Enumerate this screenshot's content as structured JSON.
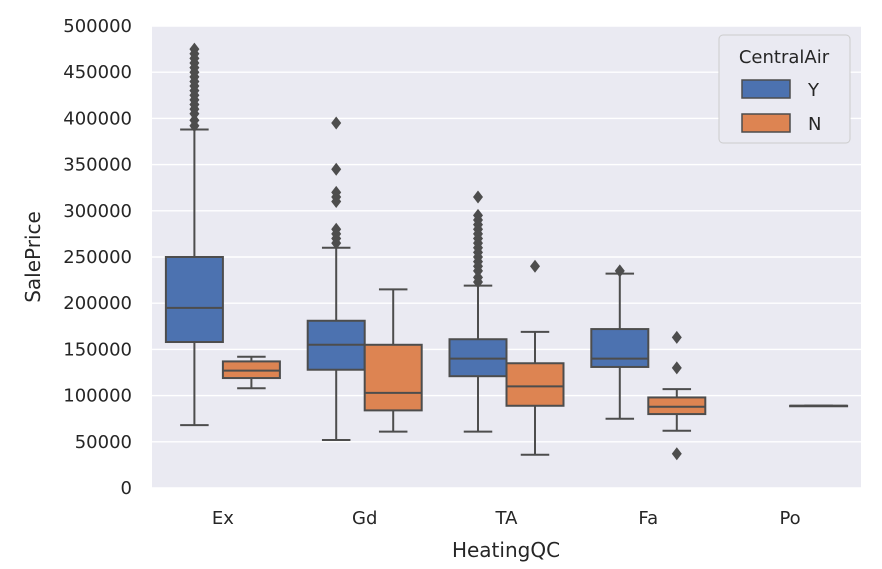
{
  "chart_data": {
    "type": "boxplot",
    "xlabel": "HeatingQC",
    "ylabel": "SalePrice",
    "categories": [
      "Ex",
      "Gd",
      "TA",
      "Fa",
      "Po"
    ],
    "ylim": [
      0,
      500000
    ],
    "yticks": [
      0,
      50000,
      100000,
      150000,
      200000,
      250000,
      300000,
      350000,
      400000,
      450000,
      500000
    ],
    "grid": true,
    "legend": {
      "title": "CentralAir",
      "position": "top-right",
      "entries": [
        "Y",
        "N"
      ]
    },
    "series": [
      {
        "name": "Y",
        "color": "#4c72b0",
        "boxes": [
          {
            "category": "Ex",
            "whisker_low": 68000,
            "q1": 158000,
            "median": 195000,
            "q3": 250000,
            "whisker_high": 388000,
            "outliers": [
              392000,
              398000,
              405000,
              410000,
              415000,
              420000,
              425000,
              430000,
              435000,
              440000,
              445000,
              450000,
              455000,
              460000,
              465000,
              470000,
              475000
            ]
          },
          {
            "category": "Gd",
            "whisker_low": 52000,
            "q1": 128000,
            "median": 155000,
            "q3": 181000,
            "whisker_high": 260000,
            "outliers": [
              265000,
              270000,
              275000,
              280000,
              310000,
              315000,
              320000,
              345000,
              395000
            ]
          },
          {
            "category": "TA",
            "whisker_low": 61000,
            "q1": 121000,
            "median": 140000,
            "q3": 161000,
            "whisker_high": 219000,
            "outliers": [
              223000,
              228000,
              235000,
              240000,
              245000,
              250000,
              255000,
              260000,
              265000,
              270000,
              275000,
              280000,
              285000,
              290000,
              295000,
              315000
            ]
          },
          {
            "category": "Fa",
            "whisker_low": 75000,
            "q1": 131000,
            "median": 140000,
            "q3": 172000,
            "whisker_high": 232000,
            "outliers": [
              235000
            ]
          }
        ]
      },
      {
        "name": "N",
        "color": "#dd8452",
        "boxes": [
          {
            "category": "Ex",
            "whisker_low": 108000,
            "q1": 119000,
            "median": 127000,
            "q3": 137000,
            "whisker_high": 142000,
            "outliers": []
          },
          {
            "category": "Gd",
            "whisker_low": 61000,
            "q1": 84000,
            "median": 103000,
            "q3": 155000,
            "whisker_high": 215000,
            "outliers": []
          },
          {
            "category": "TA",
            "whisker_low": 36000,
            "q1": 89000,
            "median": 110000,
            "q3": 135000,
            "whisker_high": 169000,
            "outliers": [
              240000
            ]
          },
          {
            "category": "Fa",
            "whisker_low": 62000,
            "q1": 80000,
            "median": 88000,
            "q3": 98000,
            "whisker_high": 107000,
            "outliers": [
              37000,
              130000,
              163000
            ]
          },
          {
            "category": "Po",
            "whisker_low": 89000,
            "q1": 89000,
            "median": 89000,
            "q3": 89000,
            "whisker_high": 89000,
            "outliers": []
          }
        ]
      }
    ]
  }
}
